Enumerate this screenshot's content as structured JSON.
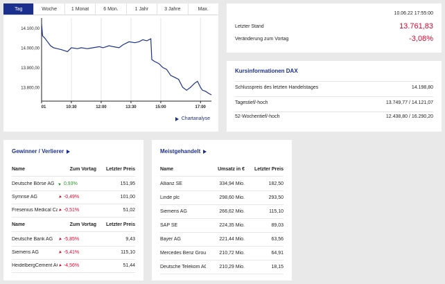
{
  "tabs": [
    {
      "label": "Tag",
      "active": true
    },
    {
      "label": "Woche"
    },
    {
      "label": "1 Monat"
    },
    {
      "label": "6 Mon."
    },
    {
      "label": "1 Jahr"
    },
    {
      "label": "3 Jahre"
    },
    {
      "label": "Max."
    }
  ],
  "chart_link": "Chartanalyse",
  "chart_data": {
    "type": "line",
    "series": [
      {
        "color": "#1b2f8f",
        "points": [
          [
            9.0,
            14120
          ],
          [
            9.05,
            14060
          ],
          [
            9.15,
            14050
          ],
          [
            9.3,
            14030
          ],
          [
            9.45,
            14010
          ],
          [
            9.6,
            14000
          ],
          [
            9.8,
            13995
          ],
          [
            10.0,
            13990
          ],
          [
            10.3,
            13980
          ],
          [
            10.5,
            14000
          ],
          [
            10.8,
            13995
          ],
          [
            11.0,
            14000
          ],
          [
            11.3,
            13995
          ],
          [
            11.6,
            14000
          ],
          [
            11.9,
            14005
          ],
          [
            12.1,
            14000
          ],
          [
            12.4,
            14010
          ],
          [
            12.6,
            14005
          ],
          [
            12.9,
            14000
          ],
          [
            13.1,
            14015
          ],
          [
            13.4,
            14030
          ],
          [
            13.7,
            14025
          ],
          [
            13.9,
            14030
          ],
          [
            14.1,
            14040
          ],
          [
            14.3,
            14035
          ],
          [
            14.5,
            14045
          ],
          [
            14.55,
            13940
          ],
          [
            14.7,
            13930
          ],
          [
            14.9,
            13920
          ],
          [
            15.1,
            13900
          ],
          [
            15.3,
            13890
          ],
          [
            15.5,
            13860
          ],
          [
            15.7,
            13850
          ],
          [
            15.9,
            13840
          ],
          [
            16.1,
            13800
          ],
          [
            16.3,
            13785
          ],
          [
            16.5,
            13800
          ],
          [
            16.7,
            13820
          ],
          [
            16.85,
            13830
          ],
          [
            17.0,
            13800
          ],
          [
            17.1,
            13785
          ],
          [
            17.25,
            13780
          ],
          [
            17.4,
            13770
          ],
          [
            17.55,
            13762
          ]
        ]
      }
    ],
    "x_ticks": [
      {
        "v": 9.0,
        "label": "01"
      },
      {
        "v": 10.5,
        "label": "10:30"
      },
      {
        "v": 12.0,
        "label": "12:00"
      },
      {
        "v": 13.5,
        "label": "13:30"
      },
      {
        "v": 15.0,
        "label": "15:00"
      },
      {
        "v": 17.0,
        "label": "17:00"
      }
    ],
    "y_ticks": [
      {
        "v": 14100,
        "label": "14.100,00"
      },
      {
        "v": 14000,
        "label": "14.000,00"
      },
      {
        "v": 13900,
        "label": "13.900,00"
      },
      {
        "v": 13800,
        "label": "13.800,00"
      }
    ],
    "xlim": [
      9.0,
      17.55
    ],
    "ylim": [
      13730,
      14150
    ],
    "grid": "vertical"
  },
  "price": {
    "date": "10.06.22 17:55:00",
    "last_label": "Letzter Stand",
    "last_value": "13.761,83",
    "change_label": "Veränderung zum Vortag",
    "change_value": "-3,08%"
  },
  "info": {
    "title": "Kursinformationen DAX",
    "rows": [
      {
        "label": "Schlusspreis des letzten Handelstages",
        "value": "14.198,80"
      },
      {
        "label": "Tagestief/-hoch",
        "value": "13.749,77 / 14.121,07"
      },
      {
        "label": "52-Wochentief/-hoch",
        "value": "12.438,80 / 16.290,20"
      }
    ]
  },
  "gainers": {
    "title": "Gewinner / Verlierer",
    "headers": {
      "name": "Name",
      "change": "Zum Vortag",
      "price": "Letzter Preis"
    },
    "winners": [
      {
        "name": "Deutsche Börse AG",
        "change": "0,93%",
        "price": "151,95",
        "dir": "up"
      },
      {
        "name": "Symrise AG",
        "change": "-0,49%",
        "price": "101,00",
        "dir": "down"
      },
      {
        "name": "Fresenius Medical Care A...",
        "change": "-0,51%",
        "price": "51,02",
        "dir": "down"
      }
    ],
    "losers": [
      {
        "name": "Deutsche Bank AG",
        "change": "-5,85%",
        "price": "9,43",
        "dir": "down"
      },
      {
        "name": "Siemens AG",
        "change": "-5,41%",
        "price": "115,10",
        "dir": "down"
      },
      {
        "name": "HeidelbergCement AG",
        "change": "-4,56%",
        "price": "51,44",
        "dir": "down"
      }
    ]
  },
  "turnover": {
    "title": "Meistgehandelt",
    "headers": {
      "name": "Name",
      "volume": "Umsatz in €",
      "price": "Letzter Preis"
    },
    "rows": [
      {
        "name": "Allianz SE",
        "volume": "334,94 Mio.",
        "price": "182,50"
      },
      {
        "name": "Linde plc",
        "volume": "298,60 Mio.",
        "price": "293,50"
      },
      {
        "name": "Siemens AG",
        "volume": "266,62 Mio.",
        "price": "115,10"
      },
      {
        "name": "SAP SE",
        "volume": "224,35 Mio.",
        "price": "89,03"
      },
      {
        "name": "Bayer AG",
        "volume": "221,44 Mio.",
        "price": "63,56"
      },
      {
        "name": "Mercedes Benz Group AG...",
        "volume": "210,72 Mio.",
        "price": "64,91"
      },
      {
        "name": "Deutsche Telekom AG",
        "volume": "210,29 Mio.",
        "price": "18,15"
      }
    ]
  }
}
